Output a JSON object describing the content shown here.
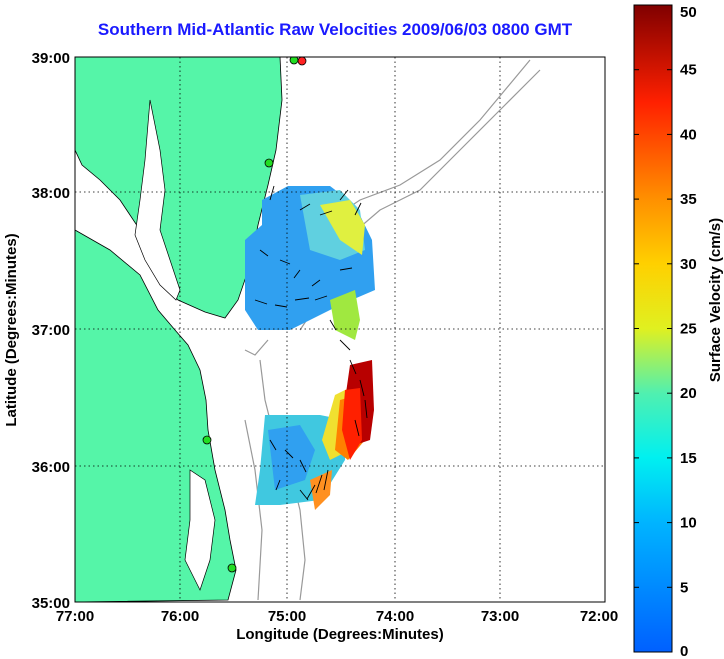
{
  "title": "Southern Mid-Atlantic Raw Velocities 2009/06/03 0800 GMT",
  "x_axis": {
    "label": "Longitude (Degrees:Minutes)",
    "ticks": [
      "77:00",
      "76:00",
      "75:00",
      "74:00",
      "73:00",
      "72:00"
    ]
  },
  "y_axis": {
    "label": "Latitude (Degrees:Minutes)",
    "ticks": [
      "39:00",
      "38:00",
      "37:00",
      "36:00",
      "35:00"
    ]
  },
  "colorbar": {
    "label": "Surface Velocity (cm/s)",
    "ticks": [
      "50",
      "45",
      "40",
      "35",
      "30",
      "25",
      "20",
      "15",
      "10",
      "5",
      "0"
    ],
    "min": 0,
    "max": 50
  },
  "colors": {
    "land": "#55f5a8",
    "water": "#ffffff",
    "title": "#1a1aff",
    "station": "#22dd22",
    "station_alert": "#ff2222"
  },
  "legend_icons": [
    "station-marker-icon",
    "current-arrow-icon"
  ]
}
